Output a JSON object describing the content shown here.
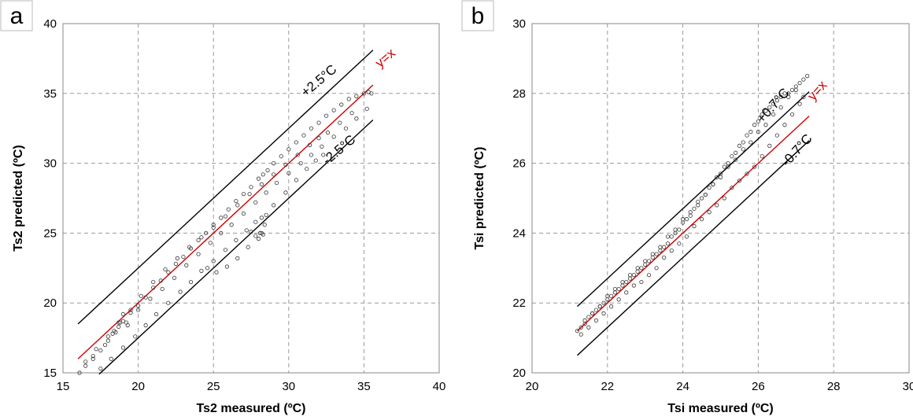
{
  "chart_data": [
    {
      "panel_label": "a",
      "type": "scatter",
      "xlabel": "Ts2 measured (ºC)",
      "ylabel": "Ts2 predicted (ºC)",
      "xlim": [
        15,
        40
      ],
      "ylim": [
        15,
        40
      ],
      "xticks": [
        "15",
        "20",
        "25",
        "30",
        "35",
        "40"
      ],
      "yticks": [
        "15",
        "20",
        "25",
        "30",
        "35",
        "40"
      ],
      "grid": true,
      "lines": [
        {
          "label": "y=x",
          "offset": 0,
          "x": [
            16,
            35.6
          ],
          "color": "#cc0000"
        },
        {
          "label": "+2.5°C",
          "offset": 2.5,
          "x": [
            16,
            35.6
          ],
          "color": "#000000"
        },
        {
          "label": "-2.5°C",
          "offset": -2.5,
          "x": [
            17.4,
            35.6
          ],
          "color": "#000000"
        }
      ],
      "series": [
        {
          "x": [
            16.1,
            16.5,
            17.0,
            17.5,
            18.0,
            18.3,
            18.7,
            19.0,
            19.5,
            20.0,
            20.5,
            21.0,
            21.5,
            22.0,
            22.5,
            23.0,
            23.5,
            24.0,
            24.5,
            25.0,
            25.5,
            26.0,
            26.5,
            27.0,
            27.5,
            28.0,
            28.3,
            28.6,
            29.0,
            29.5,
            30.0,
            30.5,
            31.0,
            31.5,
            32.0,
            32.5,
            33.0,
            33.5,
            34.0,
            34.5,
            35.0,
            35.3,
            35.5,
            17.0,
            17.8,
            18.5,
            19.2,
            20.0,
            20.8,
            21.6,
            22.4,
            23.2,
            24.0,
            24.8,
            25.5,
            26.2,
            27.0,
            27.8,
            28.5,
            29.2,
            30.0,
            30.8,
            31.5,
            32.2,
            33.0,
            33.8,
            34.5,
            35.2,
            17.5,
            18.2,
            19.0,
            19.8,
            20.5,
            21.2,
            22.0,
            22.8,
            23.5,
            24.2,
            25.0,
            25.8,
            26.5,
            27.2,
            27.8,
            28.2,
            28.5,
            29.0,
            29.8,
            30.5,
            31.2,
            31.8,
            32.3,
            16.5,
            17.2,
            18.0,
            18.8,
            19.5,
            20.2,
            21.0,
            21.8,
            22.6,
            23.4,
            24.2,
            25.0,
            25.8,
            26.6,
            27.4,
            28.2,
            29.0,
            29.8,
            30.6,
            31.4,
            32.0,
            32.6,
            33.4,
            34.2,
            18.4,
            18.7,
            19.0,
            19.3,
            24.6,
            25.2,
            25.9,
            26.6,
            27.3,
            28.0,
            28.2,
            28.4,
            28.3,
            28.1,
            27.8,
            27.5
          ],
          "y": [
            15.0,
            15.5,
            16.0,
            16.6,
            17.3,
            17.8,
            18.3,
            18.7,
            19.3,
            19.8,
            20.4,
            21.1,
            21.6,
            22.2,
            22.8,
            23.3,
            23.9,
            24.5,
            25.0,
            25.6,
            26.1,
            26.7,
            27.3,
            27.8,
            28.3,
            28.9,
            29.2,
            29.5,
            30.0,
            30.5,
            31.0,
            31.5,
            32.0,
            32.5,
            32.9,
            33.4,
            33.8,
            34.2,
            34.6,
            34.8,
            35.0,
            35.1,
            35.0,
            16.2,
            17.0,
            17.9,
            18.6,
            19.5,
            20.3,
            21.0,
            21.8,
            22.7,
            23.5,
            24.3,
            25.0,
            25.6,
            26.4,
            27.2,
            27.9,
            28.6,
            29.3,
            30.0,
            30.6,
            31.2,
            31.9,
            32.5,
            33.2,
            33.9,
            15.3,
            16.0,
            16.8,
            17.6,
            18.4,
            19.2,
            20.0,
            20.8,
            21.5,
            22.3,
            23.0,
            23.8,
            24.5,
            25.2,
            25.8,
            26.1,
            26.3,
            27.0,
            27.9,
            28.8,
            29.6,
            30.2,
            30.6,
            15.8,
            16.7,
            17.6,
            18.6,
            19.5,
            20.5,
            21.5,
            22.4,
            23.2,
            24.0,
            24.7,
            25.4,
            26.2,
            27.0,
            27.8,
            28.5,
            29.2,
            29.9,
            30.6,
            31.3,
            31.8,
            32.2,
            32.9,
            33.6,
            18.0,
            18.6,
            19.2,
            18.4,
            22.5,
            22.2,
            22.6,
            23.2,
            24.0,
            24.6,
            25.0,
            25.6,
            24.9,
            25.0,
            24.8,
            25.1
          ]
        }
      ]
    },
    {
      "panel_label": "b",
      "type": "scatter",
      "xlabel": "Tsi measured (ºC)",
      "ylabel": "Tsi predicted (ºC)",
      "xlim": [
        20,
        30
      ],
      "ylim": [
        20,
        30
      ],
      "xticks": [
        "20",
        "22",
        "24",
        "26",
        "28",
        "30"
      ],
      "yticks": [
        "20",
        "22",
        "24",
        "26",
        "28",
        "30"
      ],
      "grid": true,
      "lines": [
        {
          "label": "y=x",
          "offset": 0,
          "x": [
            21.2,
            27.35
          ],
          "color": "#cc0000"
        },
        {
          "label": "+0.7°C",
          "offset": 0.7,
          "x": [
            21.2,
            27.35
          ],
          "color": "#000000"
        },
        {
          "label": "-0.7°C",
          "offset": -0.7,
          "x": [
            21.2,
            27.35
          ],
          "color": "#000000"
        }
      ],
      "series": [
        {
          "x": [
            21.2,
            21.3,
            21.4,
            21.5,
            21.6,
            21.7,
            21.8,
            21.9,
            22.0,
            22.1,
            22.2,
            22.3,
            22.4,
            22.5,
            22.6,
            22.7,
            22.8,
            22.9,
            23.0,
            23.1,
            23.2,
            23.3,
            23.4,
            23.5,
            23.6,
            23.7,
            23.8,
            23.9,
            24.0,
            24.1,
            24.2,
            24.3,
            24.4,
            24.5,
            24.6,
            24.7,
            24.8,
            24.9,
            25.0,
            25.1,
            25.2,
            25.3,
            25.4,
            25.5,
            25.6,
            25.7,
            25.8,
            25.9,
            26.0,
            26.1,
            26.2,
            26.3,
            26.4,
            26.5,
            26.6,
            26.7,
            26.8,
            26.9,
            27.0,
            27.1,
            27.2,
            27.3,
            21.3,
            21.5,
            21.7,
            21.9,
            22.1,
            22.3,
            22.5,
            22.7,
            22.9,
            23.1,
            23.3,
            23.5,
            23.7,
            23.9,
            24.1,
            24.3,
            24.5,
            24.7,
            24.9,
            25.1,
            25.3,
            25.5,
            25.7,
            25.9,
            26.1,
            26.3,
            26.5,
            26.7,
            26.9,
            27.1,
            27.2,
            21.4,
            21.6,
            21.8,
            22.0,
            22.2,
            22.4,
            22.6,
            22.8,
            23.0,
            23.2,
            23.4,
            23.6,
            23.8,
            24.0,
            24.2,
            24.4,
            24.6,
            24.8,
            25.0,
            25.2,
            25.4,
            25.6,
            25.8,
            26.0,
            26.2,
            26.4,
            26.6,
            26.8,
            27.0
          ],
          "y": [
            21.2,
            21.3,
            21.4,
            21.6,
            21.7,
            21.8,
            21.9,
            22.0,
            22.1,
            22.2,
            22.3,
            22.4,
            22.5,
            22.6,
            22.7,
            22.8,
            22.9,
            23.0,
            23.1,
            23.2,
            23.3,
            23.4,
            23.5,
            23.6,
            23.7,
            23.9,
            24.0,
            24.1,
            24.3,
            24.4,
            24.5,
            24.7,
            24.8,
            25.0,
            25.1,
            25.3,
            25.4,
            25.6,
            25.7,
            25.9,
            26.0,
            26.2,
            26.3,
            26.5,
            26.6,
            26.8,
            26.9,
            27.1,
            27.2,
            27.4,
            27.5,
            27.6,
            27.7,
            27.8,
            27.9,
            28.0,
            28.0,
            28.1,
            28.2,
            28.3,
            28.4,
            28.5,
            21.1,
            21.3,
            21.5,
            21.7,
            21.9,
            22.1,
            22.3,
            22.5,
            22.6,
            22.8,
            23.0,
            23.3,
            23.5,
            23.7,
            23.9,
            24.2,
            24.4,
            24.6,
            24.8,
            25.0,
            25.3,
            25.5,
            25.7,
            25.9,
            26.2,
            26.5,
            26.8,
            27.1,
            27.4,
            27.7,
            27.9,
            21.5,
            21.7,
            21.9,
            22.2,
            22.4,
            22.6,
            22.8,
            23.0,
            23.2,
            23.4,
            23.6,
            23.9,
            24.1,
            24.4,
            24.6,
            24.9,
            25.1,
            25.4,
            25.6,
            25.9,
            26.1,
            26.4,
            26.6,
            26.9,
            27.1,
            27.4,
            27.6,
            27.9,
            28.1
          ]
        }
      ]
    }
  ]
}
